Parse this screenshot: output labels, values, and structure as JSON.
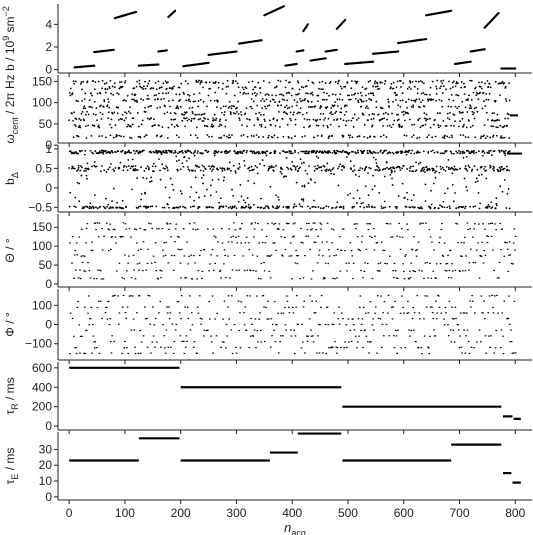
{
  "chart_data": {
    "type": "scatter",
    "x_axis": {
      "label_main": "n",
      "label_sub": "acq",
      "ticks": [
        0,
        100,
        200,
        300,
        400,
        500,
        600,
        700,
        800
      ],
      "lim": [
        -20,
        830
      ]
    },
    "panels": [
      {
        "id": "b",
        "ylabel_main": "b / 10",
        "ylabel_sup": "9",
        "ylabel_rest": " sm",
        "ylabel_sup2": "−2",
        "yticks": [
          0,
          2,
          4
        ],
        "ylim": [
          -0.3,
          5.8
        ],
        "segments": [
          {
            "x0": 10,
            "x1": 45,
            "y0": 0.2,
            "y1": 0.35
          },
          {
            "x0": 45,
            "x1": 80,
            "y0": 1.55,
            "y1": 1.75
          },
          {
            "x0": 82,
            "x1": 120,
            "y0": 4.55,
            "y1": 5.1
          },
          {
            "x0": 125,
            "x1": 160,
            "y0": 0.35,
            "y1": 0.45
          },
          {
            "x0": 160,
            "x1": 175,
            "y0": 1.6,
            "y1": 1.7
          },
          {
            "x0": 178,
            "x1": 190,
            "y0": 4.65,
            "y1": 5.2
          },
          {
            "x0": 205,
            "x1": 250,
            "y0": 0.3,
            "y1": 0.6
          },
          {
            "x0": 250,
            "x1": 300,
            "y0": 1.3,
            "y1": 1.6
          },
          {
            "x0": 305,
            "x1": 345,
            "y0": 2.3,
            "y1": 2.6
          },
          {
            "x0": 350,
            "x1": 385,
            "y0": 4.8,
            "y1": 5.6
          },
          {
            "x0": 388,
            "x1": 408,
            "y0": 0.35,
            "y1": 0.5
          },
          {
            "x0": 408,
            "x1": 420,
            "y0": 1.6,
            "y1": 1.7
          },
          {
            "x0": 420,
            "x1": 428,
            "y0": 3.4,
            "y1": 4.0
          },
          {
            "x0": 433,
            "x1": 460,
            "y0": 0.8,
            "y1": 1.0
          },
          {
            "x0": 460,
            "x1": 480,
            "y0": 1.6,
            "y1": 1.75
          },
          {
            "x0": 480,
            "x1": 495,
            "y0": 3.6,
            "y1": 4.4
          },
          {
            "x0": 495,
            "x1": 545,
            "y0": 0.5,
            "y1": 0.7
          },
          {
            "x0": 545,
            "x1": 590,
            "y0": 1.4,
            "y1": 1.6
          },
          {
            "x0": 590,
            "x1": 640,
            "y0": 2.35,
            "y1": 2.7
          },
          {
            "x0": 640,
            "x1": 685,
            "y0": 4.8,
            "y1": 5.2
          },
          {
            "x0": 692,
            "x1": 720,
            "y0": 0.5,
            "y1": 0.7
          },
          {
            "x0": 720,
            "x1": 745,
            "y0": 1.6,
            "y1": 1.8
          },
          {
            "x0": 745,
            "x1": 770,
            "y0": 3.7,
            "y1": 5.0
          },
          {
            "x0": 775,
            "x1": 800,
            "y0": 0.1,
            "y1": 0.1
          }
        ]
      },
      {
        "id": "omega",
        "ylabel_main": "ω",
        "ylabel_sub": "cent",
        "ylabel_rest": " / 2π Hz",
        "yticks": [
          0,
          50,
          100,
          150
        ],
        "ylim": [
          5,
          165
        ],
        "levels": [
          20,
          45,
          60,
          75,
          90,
          105,
          120,
          135,
          148
        ],
        "seed": 11
      },
      {
        "id": "bdelta",
        "ylabel_main": "b",
        "ylabel_sub": "Δ",
        "yticks": [
          -0.5,
          0,
          0.5,
          1
        ],
        "ylim": [
          -0.62,
          1.1
        ],
        "seed": 23
      },
      {
        "id": "theta",
        "ylabel_main": "Θ / °",
        "yticks": [
          0,
          50,
          100,
          150
        ],
        "ylim": [
          -8,
          185
        ],
        "levels": [
          15,
          35,
          55,
          75,
          90,
          110,
          125,
          145,
          160
        ],
        "seed": 37
      },
      {
        "id": "phi",
        "ylabel_main": "Φ / °",
        "yticks": [
          -100,
          0,
          100
        ],
        "ylim": [
          -185,
          185
        ],
        "levels": [
          -150,
          -120,
          -90,
          -60,
          -30,
          0,
          30,
          60,
          90,
          120,
          150
        ],
        "seed": 53
      },
      {
        "id": "tauR",
        "ylabel_main": "τ",
        "ylabel_sub": "R",
        "ylabel_rest": " / ms",
        "yticks": [
          0,
          200,
          400,
          600
        ],
        "ylim": [
          -40,
          660
        ],
        "steps": [
          {
            "x0": 0,
            "x1": 198,
            "y": 600
          },
          {
            "x0": 200,
            "x1": 488,
            "y": 400
          },
          {
            "x0": 490,
            "x1": 775,
            "y": 200
          },
          {
            "x0": 778,
            "x1": 795,
            "y": 100
          },
          {
            "x0": 797,
            "x1": 810,
            "y": 75
          }
        ]
      },
      {
        "id": "tauE",
        "ylabel_main": "τ",
        "ylabel_sub": "E",
        "ylabel_rest": " / ms",
        "yticks": [
          0,
          10,
          20,
          30
        ],
        "ylim": [
          -2,
          41
        ],
        "steps": [
          {
            "x0": 0,
            "x1": 125,
            "y": 23
          },
          {
            "x0": 125,
            "x1": 198,
            "y": 37
          },
          {
            "x0": 200,
            "x1": 360,
            "y": 23
          },
          {
            "x0": 360,
            "x1": 410,
            "y": 28
          },
          {
            "x0": 410,
            "x1": 488,
            "y": 40
          },
          {
            "x0": 490,
            "x1": 685,
            "y": 23
          },
          {
            "x0": 685,
            "x1": 775,
            "y": 33
          },
          {
            "x0": 778,
            "x1": 793,
            "y": 15
          },
          {
            "x0": 795,
            "x1": 810,
            "y": 9
          }
        ]
      }
    ]
  }
}
